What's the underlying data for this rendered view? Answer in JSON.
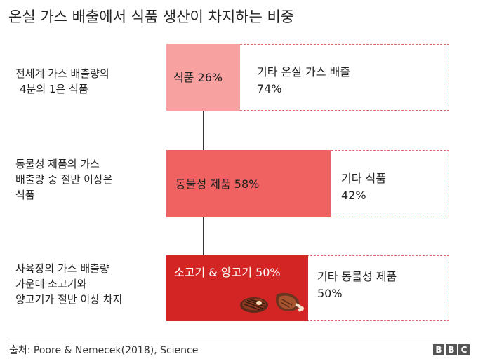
{
  "title": "온실 가스 배출에서 식품 생산이 차지하는 비중",
  "chart_data": {
    "type": "bar",
    "orientation": "horizontal",
    "stacked_percent": true,
    "rows": [
      {
        "label_lines": [
          "전세계 가스 배출량의",
          "4분의 1은 식품"
        ],
        "part": {
          "label": "식품 26%",
          "value": 26,
          "color": "#f7a1a1"
        },
        "rest": {
          "label_lines": [
            "기타 온실 가스 배출",
            "74%"
          ],
          "value": 74
        }
      },
      {
        "label_lines": [
          "동물성 제품의 가스",
          "배출량 중 절반 이상은",
          "식품"
        ],
        "part": {
          "label": "동물성 제품 58%",
          "value": 58,
          "color": "#f06262"
        },
        "rest": {
          "label_lines": [
            "기타 식품",
            "42%"
          ],
          "value": 42
        }
      },
      {
        "label_lines": [
          "사육장의 가스 배출량",
          "가운데 소고기와",
          "양고기가 절반 이상 차지"
        ],
        "part": {
          "label": "소고기 & 양고기 50%",
          "value": 50,
          "color": "#d42525",
          "icons": [
            "steak-icon",
            "ham-icon"
          ]
        },
        "rest": {
          "label_lines": [
            "기타 동물성 제품",
            "50%"
          ],
          "value": 50
        }
      }
    ]
  },
  "footer": {
    "source": "출처: Poore & Nemecek(2018), Science",
    "logo": [
      "B",
      "B",
      "C"
    ]
  }
}
